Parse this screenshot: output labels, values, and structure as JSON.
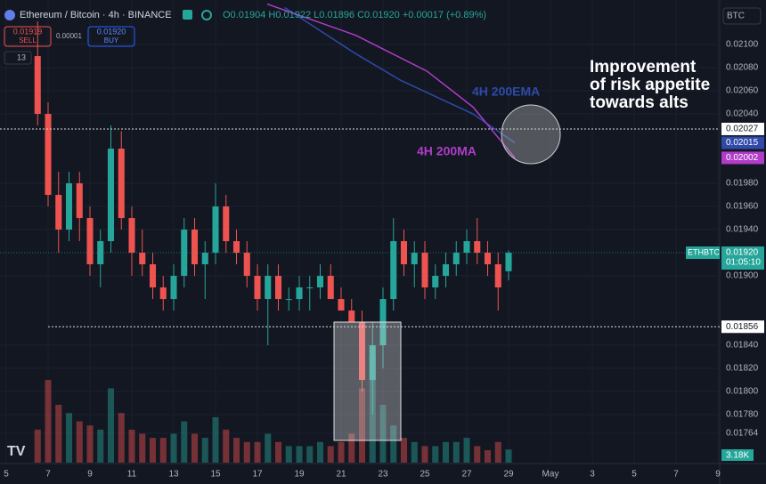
{
  "header": {
    "title": "Ethereum / Bitcoin · 4h · BINANCE",
    "ohlc": "O0.01904 H0.01922 L0.01896 C0.01920 +0.00017 (+0.89%)",
    "sell_price": "0.01919",
    "sell_label": "SELL",
    "spread": "0.00001",
    "buy_price": "0.01920",
    "buy_label": "BUY",
    "indicator_count": "13",
    "currency": "BTC"
  },
  "annotation": [
    "Improvement",
    "of risk appetite",
    "towards alts"
  ],
  "chart_data": {
    "type": "candlestick",
    "xlim": [
      -0.298,
      34.085
    ],
    "ylim": [
      0.017385,
      0.021385
    ],
    "vlim": [
      0,
      28
    ],
    "xticks": [
      {
        "value": 0,
        "label": "5"
      },
      {
        "value": 2,
        "label": "7"
      },
      {
        "value": 4,
        "label": "9"
      },
      {
        "value": 6,
        "label": "11"
      },
      {
        "value": 8,
        "label": "13"
      },
      {
        "value": 10,
        "label": "15"
      },
      {
        "value": 12,
        "label": "17"
      },
      {
        "value": 14,
        "label": "19"
      },
      {
        "value": 16,
        "label": "21"
      },
      {
        "value": 18,
        "label": "23"
      },
      {
        "value": 20,
        "label": "25"
      },
      {
        "value": 22,
        "label": "27"
      },
      {
        "value": 24,
        "label": "29"
      },
      {
        "value": 26,
        "label": "May"
      },
      {
        "value": 28,
        "label": "3"
      },
      {
        "value": 30,
        "label": "5"
      },
      {
        "value": 32,
        "label": "7"
      },
      {
        "value": 34,
        "label": "9"
      }
    ],
    "yticks": [
      {
        "value": 0.021,
        "label": "0.02100"
      },
      {
        "value": 0.0208,
        "label": "0.02080"
      },
      {
        "value": 0.0206,
        "label": "0.02060"
      },
      {
        "value": 0.0204,
        "label": "0.02040"
      },
      {
        "value": 0.0198,
        "label": "0.01980"
      },
      {
        "value": 0.0196,
        "label": "0.01960"
      },
      {
        "value": 0.0194,
        "label": "0.01940"
      },
      {
        "value": 0.019,
        "label": "0.01900"
      },
      {
        "value": 0.0184,
        "label": "0.01840"
      },
      {
        "value": 0.0182,
        "label": "0.01820"
      },
      {
        "value": 0.018,
        "label": "0.01800"
      },
      {
        "value": 0.0178,
        "label": "0.01780"
      },
      {
        "value": 0.01764,
        "label": "0.01764"
      }
    ],
    "series": [
      {
        "name": "ETHBTC",
        "up_color": "#26a69a",
        "down_color": "#ef5350",
        "x": [
          1.5,
          2,
          2.5,
          3,
          3.5,
          4,
          4.5,
          5,
          5.5,
          6,
          6.5,
          7,
          7.5,
          8,
          8.5,
          9,
          9.5,
          10,
          10.5,
          11,
          11.5,
          12,
          12.5,
          13,
          13.5,
          14,
          14.5,
          15,
          15.5,
          16,
          16.5,
          17,
          17.5,
          18,
          18.5,
          19,
          19.5,
          20,
          20.5,
          21,
          21.5,
          22,
          22.5,
          23,
          23.5,
          24
        ],
        "open": [
          0.0209,
          0.0204,
          0.0197,
          0.0194,
          0.0198,
          0.0195,
          0.0191,
          0.0193,
          0.0201,
          0.0195,
          0.0192,
          0.0191,
          0.0189,
          0.0188,
          0.019,
          0.0194,
          0.0191,
          0.0192,
          0.0196,
          0.0193,
          0.0192,
          0.019,
          0.0188,
          0.019,
          0.0188,
          0.0188,
          0.0189,
          0.0189,
          0.019,
          0.0188,
          0.0187,
          0.0186,
          0.0181,
          0.0184,
          0.0188,
          0.0193,
          0.0191,
          0.0192,
          0.0189,
          0.019,
          0.0191,
          0.0192,
          0.0193,
          0.0192,
          0.0191,
          0.01904
        ],
        "high": [
          0.0212,
          0.0205,
          0.0199,
          0.0199,
          0.0199,
          0.0196,
          0.0194,
          0.0203,
          0.02025,
          0.0196,
          0.0194,
          0.0192,
          0.019,
          0.0191,
          0.0195,
          0.0195,
          0.0193,
          0.0198,
          0.0197,
          0.0194,
          0.0193,
          0.0191,
          0.0191,
          0.0191,
          0.0189,
          0.019,
          0.019,
          0.0191,
          0.0191,
          0.0189,
          0.0188,
          0.0187,
          0.0186,
          0.0189,
          0.0195,
          0.0194,
          0.0193,
          0.0193,
          0.0191,
          0.0192,
          0.0193,
          0.0194,
          0.0195,
          0.0193,
          0.0192,
          0.01922
        ],
        "low": [
          0.0203,
          0.0196,
          0.0192,
          0.0193,
          0.0193,
          0.019,
          0.0189,
          0.0192,
          0.0194,
          0.019,
          0.019,
          0.0188,
          0.0187,
          0.0187,
          0.0189,
          0.019,
          0.0188,
          0.0191,
          0.0192,
          0.0191,
          0.0189,
          0.0187,
          0.0184,
          0.0187,
          0.0187,
          0.0187,
          0.0187,
          0.0188,
          0.0188,
          0.0187,
          0.0186,
          0.018,
          0.0178,
          0.0182,
          0.0187,
          0.019,
          0.0189,
          0.0188,
          0.0188,
          0.0189,
          0.019,
          0.0191,
          0.0191,
          0.019,
          0.0187,
          0.01896
        ],
        "close": [
          0.0204,
          0.0197,
          0.0194,
          0.0198,
          0.0195,
          0.0191,
          0.0193,
          0.0201,
          0.0195,
          0.0192,
          0.0191,
          0.0189,
          0.0188,
          0.019,
          0.0194,
          0.0191,
          0.0192,
          0.0196,
          0.0193,
          0.0192,
          0.019,
          0.0188,
          0.019,
          0.0188,
          0.0188,
          0.0189,
          0.0189,
          0.019,
          0.0188,
          0.0187,
          0.0186,
          0.0181,
          0.0184,
          0.0188,
          0.0193,
          0.0191,
          0.0192,
          0.0189,
          0.019,
          0.0191,
          0.0192,
          0.0193,
          0.0192,
          0.0191,
          0.0189,
          0.0192
        ],
        "volume": [
          8,
          20,
          14,
          12,
          10,
          9,
          8,
          18,
          12,
          8,
          7,
          6,
          6,
          7,
          10,
          7,
          6,
          11,
          8,
          6,
          5,
          5,
          7,
          5,
          4,
          4,
          4,
          5,
          4,
          5,
          7,
          18,
          26,
          14,
          9,
          6,
          5,
          4,
          4,
          5,
          5,
          6,
          4,
          3,
          5,
          3.18
        ],
        "last_label": "0.01920",
        "countdown": "01:05:10",
        "volume_label": "3.18K"
      }
    ],
    "lines": [
      {
        "name": "4H 200EMA",
        "color": "#2f4aa8",
        "x": [
          13.3,
          16.7,
          18.85,
          22.3,
          24.3
        ],
        "values": [
          0.02132,
          0.02092,
          0.02069,
          0.0204,
          0.02015
        ],
        "last_label": "0.02015"
      },
      {
        "name": "4H 200MA",
        "color": "#b03cc8",
        "x": [
          12.47,
          16.7,
          20.1,
          22.3,
          24.3
        ],
        "values": [
          0.02135,
          0.02108,
          0.02077,
          0.02046,
          0.02002
        ],
        "last_label": "0.02002"
      }
    ],
    "levels": [
      {
        "value": 0.02027,
        "label": "0.02027",
        "from": 24
      },
      {
        "value": 0.01856,
        "label": "0.01856",
        "from": 2
      }
    ]
  }
}
